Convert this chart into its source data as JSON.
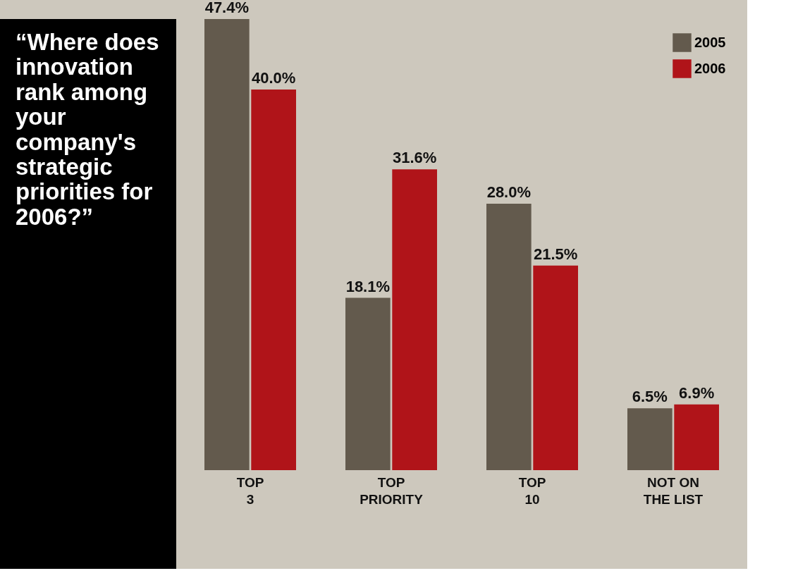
{
  "chart_data": {
    "type": "bar",
    "title": "“Where does\ninnovation\nrank among\nyour\ncompany's\nstrategic\npriorities for\n2006?”",
    "categories": [
      "TOP\n3",
      "TOP\nPRIORITY",
      "TOP\n10",
      "NOT ON\nTHE LIST"
    ],
    "series": [
      {
        "name": "2005",
        "color": "#635a4d",
        "values": [
          47.4,
          18.1,
          28.0,
          6.5
        ],
        "value_labels": [
          "47.4%",
          "18.1%",
          "28.0%",
          "6.5%"
        ]
      },
      {
        "name": "2006",
        "color": "#b01419",
        "values": [
          40.0,
          31.6,
          21.5,
          6.9
        ],
        "value_labels": [
          "40.0%",
          "31.6%",
          "21.5%",
          "6.9%"
        ]
      }
    ],
    "legend": "top right",
    "grid": false
  }
}
